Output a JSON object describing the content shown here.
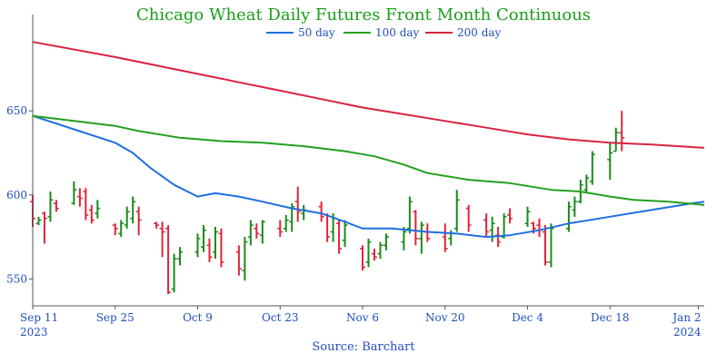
{
  "chart_data": {
    "type": "line",
    "title": "Chicago Wheat Daily Futures Front Month Continuous",
    "source": "Source: Barchart",
    "xlim": [
      "2023-09-11",
      "2024-01-03"
    ],
    "ylim": [
      534,
      703
    ],
    "y_ticks": [
      550,
      600,
      650
    ],
    "x_ticks": [
      {
        "date": "2023-09-11",
        "label": "Sep 11",
        "year": "2023"
      },
      {
        "date": "2023-09-25",
        "label": "Sep 25",
        "year": ""
      },
      {
        "date": "2023-10-09",
        "label": "Oct 9",
        "year": ""
      },
      {
        "date": "2023-10-23",
        "label": "Oct 23",
        "year": ""
      },
      {
        "date": "2023-11-06",
        "label": "Nov 6",
        "year": ""
      },
      {
        "date": "2023-11-20",
        "label": "Nov 20",
        "year": ""
      },
      {
        "date": "2023-12-04",
        "label": "Dec 4",
        "year": ""
      },
      {
        "date": "2023-12-18",
        "label": "Dec 18",
        "year": ""
      },
      {
        "date": "2024-01-02",
        "label": "Jan 2",
        "year": "2024"
      }
    ],
    "legend_position": "top-center",
    "grid": false,
    "colors": {
      "up": "#1a8a1a",
      "down": "#e0243a",
      "axis": "#555555"
    },
    "series": [
      {
        "name": "50 day",
        "color": "#1f6fe0",
        "points": [
          [
            "2023-09-11",
            647
          ],
          [
            "2023-09-18",
            639
          ],
          [
            "2023-09-25",
            631
          ],
          [
            "2023-09-28",
            625
          ],
          [
            "2023-10-01",
            616
          ],
          [
            "2023-10-05",
            606
          ],
          [
            "2023-10-09",
            599
          ],
          [
            "2023-10-12",
            601
          ],
          [
            "2023-10-16",
            599
          ],
          [
            "2023-10-20",
            596
          ],
          [
            "2023-10-25",
            592
          ],
          [
            "2023-10-30",
            589
          ],
          [
            "2023-11-03",
            584
          ],
          [
            "2023-11-06",
            580
          ],
          [
            "2023-11-11",
            580
          ],
          [
            "2023-11-17",
            578
          ],
          [
            "2023-11-22",
            577
          ],
          [
            "2023-11-27",
            575
          ],
          [
            "2023-12-01",
            576
          ],
          [
            "2023-12-06",
            579
          ],
          [
            "2023-12-11",
            583
          ],
          [
            "2023-12-18",
            587
          ],
          [
            "2023-12-25",
            591
          ],
          [
            "2024-01-01",
            595
          ],
          [
            "2024-01-03",
            596
          ]
        ]
      },
      {
        "name": "100 day",
        "color": "#22a01e",
        "points": [
          [
            "2023-09-11",
            647
          ],
          [
            "2023-09-18",
            644
          ],
          [
            "2023-09-25",
            641
          ],
          [
            "2023-09-29",
            638
          ],
          [
            "2023-10-06",
            634
          ],
          [
            "2023-10-13",
            632
          ],
          [
            "2023-10-20",
            631
          ],
          [
            "2023-10-27",
            629
          ],
          [
            "2023-11-03",
            626
          ],
          [
            "2023-11-08",
            623
          ],
          [
            "2023-11-13",
            618
          ],
          [
            "2023-11-17",
            613
          ],
          [
            "2023-11-24",
            609
          ],
          [
            "2023-12-01",
            607
          ],
          [
            "2023-12-08",
            603
          ],
          [
            "2023-12-13",
            602
          ],
          [
            "2023-12-18",
            599
          ],
          [
            "2023-12-22",
            597
          ],
          [
            "2023-12-28",
            596
          ],
          [
            "2024-01-03",
            594
          ]
        ]
      },
      {
        "name": "200 day",
        "color": "#d9233f",
        "points": [
          [
            "2023-09-11",
            691
          ],
          [
            "2023-09-25",
            682
          ],
          [
            "2023-10-09",
            672
          ],
          [
            "2023-10-23",
            662
          ],
          [
            "2023-11-06",
            652
          ],
          [
            "2023-11-20",
            644
          ],
          [
            "2023-11-27",
            640
          ],
          [
            "2023-12-04",
            636
          ],
          [
            "2023-12-11",
            633
          ],
          [
            "2023-12-18",
            631
          ],
          [
            "2023-12-25",
            630
          ],
          [
            "2024-01-03",
            628
          ]
        ]
      }
    ],
    "bars": [
      [
        "2023-09-11",
        600,
        581,
        596,
        586
      ],
      [
        "2023-09-12",
        587,
        582,
        583,
        585
      ],
      [
        "2023-09-13",
        590,
        571,
        589,
        586
      ],
      [
        "2023-09-14",
        602,
        584,
        587,
        597
      ],
      [
        "2023-09-15",
        597,
        590,
        595,
        592
      ],
      [
        "2023-09-18",
        608,
        594,
        595,
        603
      ],
      [
        "2023-09-19",
        604,
        593,
        599,
        598
      ],
      [
        "2023-09-20",
        604,
        585,
        602,
        588
      ],
      [
        "2023-09-21",
        594,
        583,
        591,
        585
      ],
      [
        "2023-09-22",
        597,
        586,
        589,
        592
      ],
      [
        "2023-09-25",
        583,
        576,
        582,
        580
      ],
      [
        "2023-09-26",
        585,
        575,
        577,
        583
      ],
      [
        "2023-09-27",
        593,
        580,
        582,
        590
      ],
      [
        "2023-09-28",
        599,
        583,
        586,
        596
      ],
      [
        "2023-09-29",
        593,
        576,
        590,
        585
      ],
      [
        "2023-10-02",
        584,
        580,
        583,
        582
      ],
      [
        "2023-10-03",
        584,
        563,
        580,
        578
      ],
      [
        "2023-10-04",
        582,
        541,
        580,
        542
      ],
      [
        "2023-10-05",
        565,
        542,
        544,
        562
      ],
      [
        "2023-10-06",
        569,
        558,
        562,
        566
      ],
      [
        "2023-10-09",
        577,
        563,
        566,
        574
      ],
      [
        "2023-10-10",
        582,
        566,
        569,
        579
      ],
      [
        "2023-10-11",
        574,
        560,
        570,
        563
      ],
      [
        "2023-10-12",
        581,
        562,
        566,
        578
      ],
      [
        "2023-10-13",
        580,
        557,
        577,
        560
      ],
      [
        "2023-10-16",
        570,
        552,
        566,
        556
      ],
      [
        "2023-10-17",
        575,
        549,
        555,
        572
      ],
      [
        "2023-10-18",
        585,
        570,
        575,
        582
      ],
      [
        "2023-10-19",
        583,
        574,
        580,
        577
      ],
      [
        "2023-10-20",
        585,
        571,
        576,
        584
      ],
      [
        "2023-10-23",
        585,
        575,
        580,
        578
      ],
      [
        "2023-10-24",
        588,
        578,
        580,
        585
      ],
      [
        "2023-10-25",
        595,
        578,
        584,
        593
      ],
      [
        "2023-10-26",
        605,
        584,
        596,
        590
      ],
      [
        "2023-10-27",
        594,
        585,
        589,
        591
      ],
      [
        "2023-10-30",
        596,
        584,
        593,
        587
      ],
      [
        "2023-10-31",
        589,
        572,
        588,
        575
      ],
      [
        "2023-11-01",
        589,
        572,
        578,
        586
      ],
      [
        "2023-11-02",
        585,
        565,
        583,
        568
      ],
      [
        "2023-11-03",
        585,
        569,
        573,
        582
      ],
      [
        "2023-11-06",
        570,
        555,
        568,
        557
      ],
      [
        "2023-11-07",
        574,
        557,
        560,
        572
      ],
      [
        "2023-11-08",
        568,
        561,
        565,
        563
      ],
      [
        "2023-11-09",
        572,
        562,
        565,
        570
      ],
      [
        "2023-11-10",
        577,
        567,
        570,
        575
      ],
      [
        "2023-11-13",
        581,
        567,
        572,
        578
      ],
      [
        "2023-11-14",
        599,
        577,
        580,
        596
      ],
      [
        "2023-11-15",
        591,
        570,
        590,
        574
      ],
      [
        "2023-11-16",
        584,
        565,
        574,
        582
      ],
      [
        "2023-11-17",
        583,
        572,
        578,
        574
      ],
      [
        "2023-11-20",
        583,
        566,
        575,
        568
      ],
      [
        "2023-11-21",
        579,
        570,
        574,
        577
      ],
      [
        "2023-11-22",
        603,
        578,
        580,
        597
      ],
      [
        "2023-11-24",
        594,
        578,
        592,
        582
      ],
      [
        "2023-11-27",
        589,
        575,
        585,
        578
      ],
      [
        "2023-11-28",
        587,
        572,
        579,
        583
      ],
      [
        "2023-11-29",
        581,
        569,
        576,
        572
      ],
      [
        "2023-11-30",
        589,
        574,
        575,
        587
      ],
      [
        "2023-12-01",
        592,
        583,
        588,
        586
      ],
      [
        "2023-12-04",
        593,
        581,
        583,
        590
      ],
      [
        "2023-12-05",
        584,
        577,
        583,
        580
      ],
      [
        "2023-12-06",
        586,
        575,
        582,
        579
      ],
      [
        "2023-12-07",
        582,
        558,
        578,
        560
      ],
      [
        "2023-12-08",
        583,
        557,
        560,
        580
      ],
      [
        "2023-12-11",
        596,
        578,
        580,
        593
      ],
      [
        "2023-12-12",
        599,
        587,
        591,
        596
      ],
      [
        "2023-12-13",
        609,
        595,
        596,
        606
      ],
      [
        "2023-12-14",
        612,
        601,
        603,
        610
      ],
      [
        "2023-12-15",
        626,
        606,
        608,
        624
      ],
      [
        "2023-12-18",
        631,
        609,
        621,
        625
      ],
      [
        "2023-12-19",
        640,
        626,
        626,
        637
      ],
      [
        "2023-12-20",
        650,
        626,
        637,
        634
      ]
    ]
  }
}
